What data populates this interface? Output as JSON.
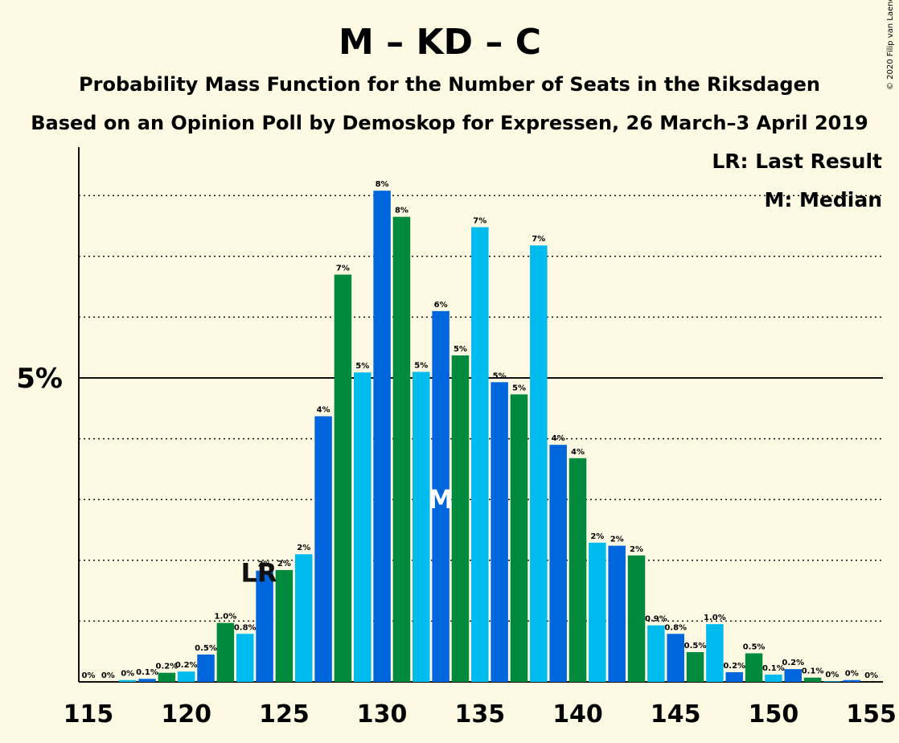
{
  "chart_data": {
    "type": "bar",
    "title": "M – KD – C",
    "subtitle_1": "Probability Mass Function for the Number of Seats in the Riksdagen",
    "subtitle_2": "Based on an Opinion Poll by Demoskop for Expressen, 26 March–3 April 2019",
    "copyright": "© 2020 Filip van Laenen",
    "legend": {
      "last_result": "LR: Last Result",
      "median": "M: Median",
      "placement": "top-right"
    },
    "y_tick_label": "5%",
    "x_tick_labels": [
      "115",
      "120",
      "125",
      "130",
      "135",
      "140",
      "145",
      "150",
      "155"
    ],
    "x_ticks": [
      115,
      120,
      125,
      130,
      135,
      140,
      145,
      150,
      155
    ],
    "xlim": [
      115,
      155
    ],
    "ylim": [
      0,
      8.8
    ],
    "grid": "dotted at 1% steps, solid at 5%",
    "colors": {
      "a": "#0066DD",
      "b": "#008A3E",
      "c": "#00BBEE"
    },
    "markers": {
      "last_result": {
        "seat": 124,
        "label": "LR"
      },
      "median": {
        "seat": 133,
        "label": "M"
      }
    },
    "bars": [
      {
        "seat": 115,
        "value": 0,
        "label": "0%",
        "color": "c"
      },
      {
        "seat": 116,
        "value": 0,
        "label": "0%",
        "color": "a"
      },
      {
        "seat": 117,
        "value": 0.03,
        "label": "0%",
        "color": "c"
      },
      {
        "seat": 118,
        "value": 0.05,
        "label": "0.1%",
        "color": "a"
      },
      {
        "seat": 119,
        "value": 0.15,
        "label": "0.2%",
        "color": "b"
      },
      {
        "seat": 120,
        "value": 0.17,
        "label": "0.2%",
        "color": "c"
      },
      {
        "seat": 121,
        "value": 0.45,
        "label": "0.5%",
        "color": "a"
      },
      {
        "seat": 122,
        "value": 0.97,
        "label": "1.0%",
        "color": "b"
      },
      {
        "seat": 123,
        "value": 0.79,
        "label": "0.8%",
        "color": "c"
      },
      {
        "seat": 124,
        "value": 1.83,
        "label": "2%",
        "color": "a"
      },
      {
        "seat": 125,
        "value": 1.84,
        "label": "2%",
        "color": "b"
      },
      {
        "seat": 126,
        "value": 2.1,
        "label": "2%",
        "color": "c"
      },
      {
        "seat": 127,
        "value": 4.37,
        "label": "4%",
        "color": "a"
      },
      {
        "seat": 128,
        "value": 6.7,
        "label": "7%",
        "color": "b"
      },
      {
        "seat": 129,
        "value": 5.09,
        "label": "5%",
        "color": "c"
      },
      {
        "seat": 130,
        "value": 8.08,
        "label": "8%",
        "color": "a"
      },
      {
        "seat": 131,
        "value": 7.65,
        "label": "8%",
        "color": "b"
      },
      {
        "seat": 132,
        "value": 5.1,
        "label": "5%",
        "color": "c"
      },
      {
        "seat": 133,
        "value": 6.1,
        "label": "6%",
        "color": "a"
      },
      {
        "seat": 134,
        "value": 5.37,
        "label": "5%",
        "color": "b"
      },
      {
        "seat": 135,
        "value": 7.48,
        "label": "7%",
        "color": "c"
      },
      {
        "seat": 136,
        "value": 4.93,
        "label": "5%",
        "color": "a"
      },
      {
        "seat": 137,
        "value": 4.73,
        "label": "5%",
        "color": "b"
      },
      {
        "seat": 138,
        "value": 7.18,
        "label": "7%",
        "color": "c"
      },
      {
        "seat": 139,
        "value": 3.9,
        "label": "4%",
        "color": "a"
      },
      {
        "seat": 140,
        "value": 3.68,
        "label": "4%",
        "color": "b"
      },
      {
        "seat": 141,
        "value": 2.29,
        "label": "2%",
        "color": "c"
      },
      {
        "seat": 142,
        "value": 2.24,
        "label": "2%",
        "color": "a"
      },
      {
        "seat": 143,
        "value": 2.08,
        "label": "2%",
        "color": "b"
      },
      {
        "seat": 144,
        "value": 0.93,
        "label": "0.9%",
        "color": "c"
      },
      {
        "seat": 145,
        "value": 0.79,
        "label": "0.8%",
        "color": "a"
      },
      {
        "seat": 146,
        "value": 0.49,
        "label": "0.5%",
        "color": "b"
      },
      {
        "seat": 147,
        "value": 0.95,
        "label": "1.0%",
        "color": "c"
      },
      {
        "seat": 148,
        "value": 0.16,
        "label": "0.2%",
        "color": "a"
      },
      {
        "seat": 149,
        "value": 0.47,
        "label": "0.5%",
        "color": "b"
      },
      {
        "seat": 150,
        "value": 0.12,
        "label": "0.1%",
        "color": "c"
      },
      {
        "seat": 151,
        "value": 0.21,
        "label": "0.2%",
        "color": "a"
      },
      {
        "seat": 152,
        "value": 0.07,
        "label": "0.1%",
        "color": "b"
      },
      {
        "seat": 153,
        "value": 0.01,
        "label": "0%",
        "color": "c"
      },
      {
        "seat": 154,
        "value": 0.03,
        "label": "0%",
        "color": "a"
      },
      {
        "seat": 155,
        "value": 0,
        "label": "0%",
        "color": "b"
      }
    ]
  }
}
